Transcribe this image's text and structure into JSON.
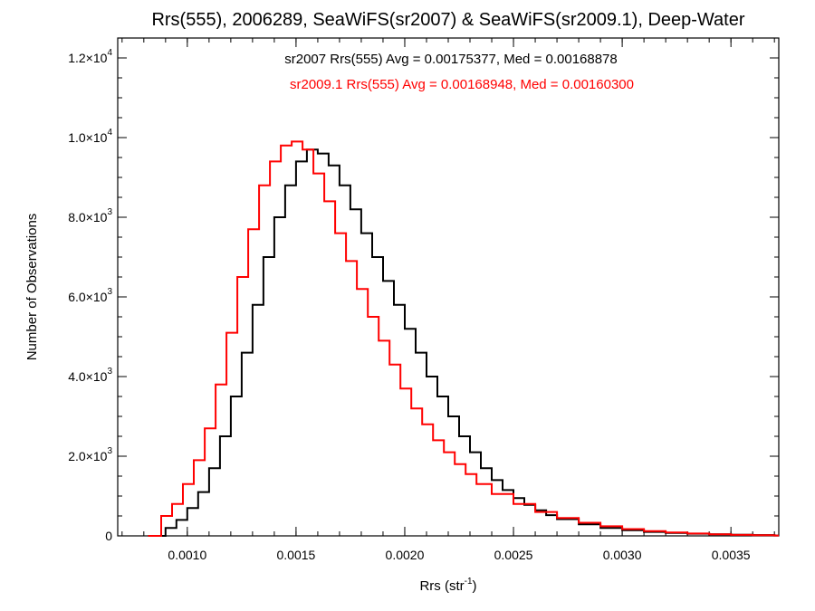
{
  "chart_data": {
    "type": "line",
    "title": "Rrs(555), 2006289, SeaWiFS(sr2007) & SeaWiFS(sr2009.1), Deep-Water",
    "xlabel_main": "Rrs (str",
    "xlabel_sup": "-1",
    "xlabel_end": ")",
    "ylabel": "Number of Observations",
    "xlim": [
      0.00068,
      0.00372
    ],
    "ylim": [
      0,
      12500
    ],
    "x_ticks": [
      {
        "value": 0.001,
        "label": "0.0010"
      },
      {
        "value": 0.0015,
        "label": "0.0015"
      },
      {
        "value": 0.002,
        "label": "0.0020"
      },
      {
        "value": 0.0025,
        "label": "0.0025"
      },
      {
        "value": 0.003,
        "label": "0.0030"
      },
      {
        "value": 0.0035,
        "label": "0.0035"
      }
    ],
    "y_ticks": [
      {
        "value": 0,
        "mant": "0",
        "exp": ""
      },
      {
        "value": 2000,
        "mant": "2.0×10",
        "exp": "3"
      },
      {
        "value": 4000,
        "mant": "4.0×10",
        "exp": "3"
      },
      {
        "value": 6000,
        "mant": "6.0×10",
        "exp": "3"
      },
      {
        "value": 8000,
        "mant": "8.0×10",
        "exp": "3"
      },
      {
        "value": 10000,
        "mant": "1.0×10",
        "exp": "4"
      },
      {
        "value": 12000,
        "mant": "1.2×10",
        "exp": "4"
      }
    ],
    "annotations": [
      {
        "text": "sr2007 Rrs(555) Avg = 0.00175377, Med = 0.00168878",
        "color": "#000000"
      },
      {
        "text": "sr2009.1 Rrs(555) Avg = 0.00168948, Med = 0.00160300",
        "color": "#ff0000"
      }
    ],
    "series": [
      {
        "color": "#000000",
        "x": [
          0.00082,
          0.0009,
          0.00095,
          0.001,
          0.00105,
          0.0011,
          0.00115,
          0.0012,
          0.00125,
          0.0013,
          0.00135,
          0.0014,
          0.00145,
          0.0015,
          0.00155,
          0.0016,
          0.00165,
          0.0017,
          0.00175,
          0.0018,
          0.00185,
          0.0019,
          0.00195,
          0.002,
          0.00205,
          0.0021,
          0.00215,
          0.0022,
          0.00225,
          0.0023,
          0.00235,
          0.0024,
          0.00245,
          0.0025,
          0.00255,
          0.0026,
          0.00265,
          0.0027,
          0.0028,
          0.0029,
          0.003,
          0.0031,
          0.0032,
          0.0033,
          0.0034,
          0.0035,
          0.0036,
          0.0037
        ],
        "values": [
          0,
          200,
          400,
          700,
          1100,
          1700,
          2500,
          3500,
          4600,
          5800,
          7000,
          8000,
          8800,
          9400,
          9700,
          9600,
          9300,
          8800,
          8200,
          7600,
          7000,
          6400,
          5800,
          5200,
          4600,
          4000,
          3500,
          3000,
          2500,
          2100,
          1700,
          1400,
          1150,
          950,
          780,
          640,
          520,
          420,
          290,
          200,
          140,
          100,
          75,
          55,
          40,
          30,
          20,
          10
        ]
      },
      {
        "color": "#ff0000",
        "x": [
          0.00082,
          0.00088,
          0.00093,
          0.00098,
          0.00103,
          0.00108,
          0.00113,
          0.00118,
          0.00123,
          0.00128,
          0.00133,
          0.00138,
          0.00143,
          0.00148,
          0.00153,
          0.00158,
          0.00163,
          0.00168,
          0.00173,
          0.00178,
          0.00183,
          0.00188,
          0.00193,
          0.00198,
          0.00203,
          0.00208,
          0.00213,
          0.00218,
          0.00223,
          0.00228,
          0.00233,
          0.0024,
          0.0025,
          0.0026,
          0.0027,
          0.0028,
          0.0029,
          0.003,
          0.0031,
          0.0032,
          0.0033,
          0.0034,
          0.0035,
          0.0036,
          0.0037
        ],
        "values": [
          0,
          500,
          800,
          1300,
          1900,
          2700,
          3800,
          5100,
          6500,
          7700,
          8800,
          9400,
          9800,
          9900,
          9700,
          9100,
          8400,
          7600,
          6900,
          6200,
          5500,
          4900,
          4300,
          3700,
          3200,
          2800,
          2400,
          2100,
          1800,
          1550,
          1300,
          1050,
          800,
          600,
          450,
          330,
          240,
          170,
          120,
          85,
          60,
          40,
          25,
          15,
          8
        ]
      }
    ]
  }
}
